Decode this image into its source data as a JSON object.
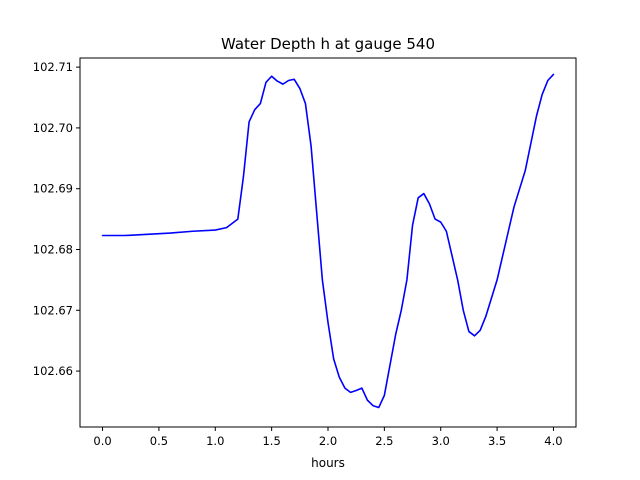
{
  "chart_data": {
    "type": "line",
    "title": "Water Depth h at gauge 540",
    "xlabel": "hours",
    "ylabel": "",
    "xlim": [
      -0.2,
      4.2
    ],
    "ylim": [
      102.6508,
      102.7115
    ],
    "grid": false,
    "x_ticks": [
      0.0,
      0.5,
      1.0,
      1.5,
      2.0,
      2.5,
      3.0,
      3.5,
      4.0
    ],
    "x_tick_labels": [
      "0.0",
      "0.5",
      "1.0",
      "1.5",
      "2.0",
      "2.5",
      "3.0",
      "3.5",
      "4.0"
    ],
    "y_ticks": [
      102.66,
      102.67,
      102.68,
      102.69,
      102.7,
      102.71
    ],
    "y_tick_labels": [
      "102.66",
      "102.67",
      "102.68",
      "102.69",
      "102.70",
      "102.71"
    ],
    "series": [
      {
        "color": "#0000ff",
        "points": [
          [
            0.0,
            102.6823
          ],
          [
            0.2,
            102.6823
          ],
          [
            0.4,
            102.6825
          ],
          [
            0.6,
            102.6827
          ],
          [
            0.8,
            102.683
          ],
          [
            1.0,
            102.6832
          ],
          [
            1.1,
            102.6836
          ],
          [
            1.2,
            102.685
          ],
          [
            1.25,
            102.692
          ],
          [
            1.3,
            102.701
          ],
          [
            1.35,
            102.703
          ],
          [
            1.4,
            102.704
          ],
          [
            1.45,
            102.7075
          ],
          [
            1.5,
            102.7085
          ],
          [
            1.55,
            102.7077
          ],
          [
            1.6,
            102.7072
          ],
          [
            1.65,
            102.7078
          ],
          [
            1.7,
            102.708
          ],
          [
            1.75,
            102.7065
          ],
          [
            1.8,
            102.704
          ],
          [
            1.85,
            102.697
          ],
          [
            1.9,
            102.686
          ],
          [
            1.95,
            102.675
          ],
          [
            2.0,
            102.668
          ],
          [
            2.05,
            102.662
          ],
          [
            2.1,
            102.659
          ],
          [
            2.15,
            102.6572
          ],
          [
            2.2,
            102.6565
          ],
          [
            2.25,
            102.6568
          ],
          [
            2.3,
            102.6572
          ],
          [
            2.35,
            102.6552
          ],
          [
            2.4,
            102.6543
          ],
          [
            2.45,
            102.654
          ],
          [
            2.5,
            102.656
          ],
          [
            2.55,
            102.661
          ],
          [
            2.6,
            102.666
          ],
          [
            2.65,
            102.67
          ],
          [
            2.7,
            102.675
          ],
          [
            2.75,
            102.684
          ],
          [
            2.8,
            102.6885
          ],
          [
            2.85,
            102.6892
          ],
          [
            2.9,
            102.6875
          ],
          [
            2.95,
            102.685
          ],
          [
            3.0,
            102.6845
          ],
          [
            3.05,
            102.683
          ],
          [
            3.1,
            102.679
          ],
          [
            3.15,
            102.675
          ],
          [
            3.2,
            102.67
          ],
          [
            3.25,
            102.6665
          ],
          [
            3.3,
            102.6658
          ],
          [
            3.35,
            102.6667
          ],
          [
            3.4,
            102.669
          ],
          [
            3.45,
            102.672
          ],
          [
            3.5,
            102.675
          ],
          [
            3.55,
            102.679
          ],
          [
            3.6,
            102.683
          ],
          [
            3.65,
            102.687
          ],
          [
            3.7,
            102.69
          ],
          [
            3.75,
            102.693
          ],
          [
            3.8,
            102.6975
          ],
          [
            3.85,
            102.702
          ],
          [
            3.9,
            102.7055
          ],
          [
            3.95,
            102.7078
          ],
          [
            4.0,
            102.7088
          ]
        ]
      }
    ]
  }
}
